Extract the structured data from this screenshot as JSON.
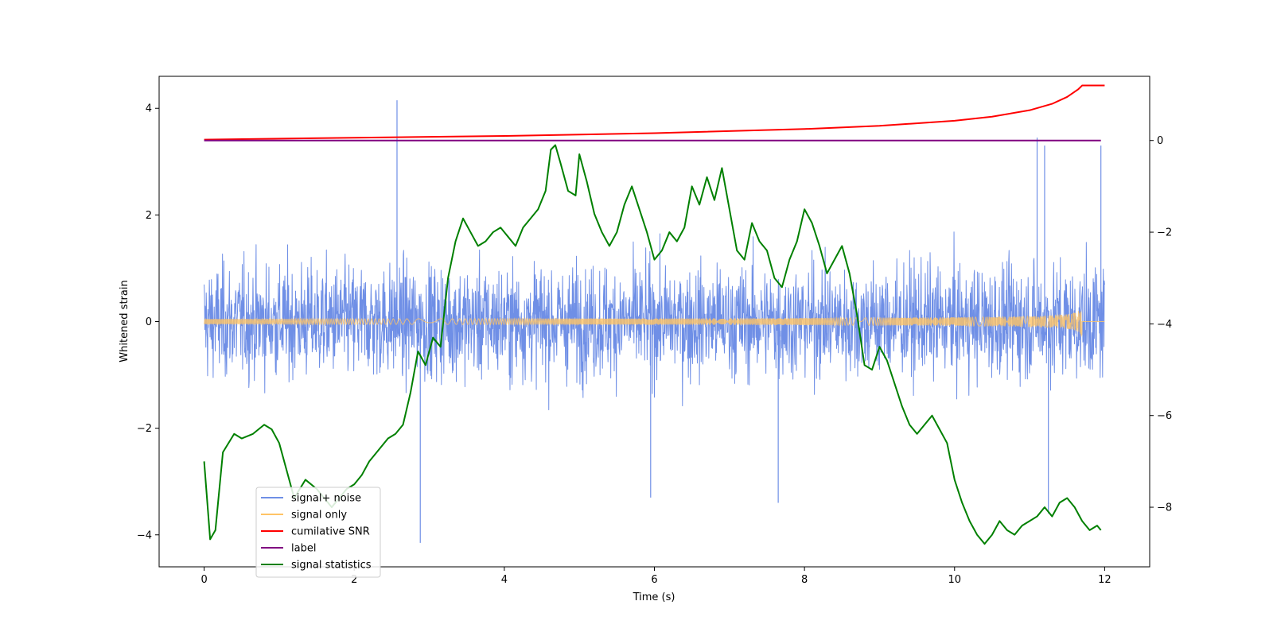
{
  "chart_data": {
    "type": "line",
    "title": "",
    "xlabel": "Time (s)",
    "ylabel": "Whitened strain",
    "ylabel_right": "",
    "xlim": [
      -0.6,
      12.6
    ],
    "ylim_left": [
      -4.6,
      4.6
    ],
    "ylim_right": [
      -9.3,
      1.4
    ],
    "x_ticks": [
      "0",
      "2",
      "4",
      "6",
      "8",
      "10",
      "12"
    ],
    "y_ticks_left": [
      "4",
      "2",
      "0",
      "−2",
      "−4"
    ],
    "y_ticks_right": [
      "0",
      "−2",
      "−4",
      "−6",
      "−8"
    ],
    "grid": false,
    "legend_position": "lower-left",
    "legend": [
      {
        "label": "signal+ noise",
        "color": "#6f8fe6"
      },
      {
        "label": "signal only",
        "color": "#ffc466"
      },
      {
        "label": "cumilative SNR",
        "color": "#ff0000"
      },
      {
        "label": "label",
        "color": "#800080"
      },
      {
        "label": "signal statistics",
        "color": "#008000"
      }
    ],
    "series": [
      {
        "name": "signal+ noise",
        "axis": "left",
        "color": "#6f8fe6",
        "render": "dense noise band",
        "x_range": [
          0,
          12
        ],
        "typical_envelope": [
          -1.7,
          1.7
        ],
        "peak_values": [
          {
            "x": 2.57,
            "y": 4.15
          },
          {
            "x": 2.88,
            "y": -4.15
          },
          {
            "x": 5.95,
            "y": -3.3
          },
          {
            "x": 7.65,
            "y": -3.4
          },
          {
            "x": 11.1,
            "y": 3.45
          },
          {
            "x": 11.2,
            "y": 3.3
          },
          {
            "x": 11.25,
            "y": -3.6
          },
          {
            "x": 11.95,
            "y": 3.3
          }
        ]
      },
      {
        "name": "signal only",
        "axis": "left",
        "color": "#ffc466",
        "render": "chirp",
        "x_range": [
          0,
          12
        ],
        "merger_time": 11.7,
        "peak_amplitude": 0.45
      },
      {
        "name": "cumilative SNR",
        "axis": "right",
        "color": "#ff0000",
        "x": [
          0,
          2,
          4,
          6,
          8,
          9,
          10,
          10.5,
          11,
          11.3,
          11.5,
          11.65,
          11.7,
          12.0
        ],
        "y": [
          0.02,
          0.06,
          0.1,
          0.16,
          0.25,
          0.32,
          0.43,
          0.52,
          0.66,
          0.8,
          0.95,
          1.12,
          1.2,
          1.2
        ]
      },
      {
        "name": "label",
        "axis": "right",
        "color": "#800080",
        "x": [
          0,
          11.95
        ],
        "y": [
          0,
          0
        ]
      },
      {
        "name": "signal statistics",
        "axis": "right",
        "color": "#008000",
        "x": [
          0,
          0.08,
          0.15,
          0.25,
          0.4,
          0.5,
          0.65,
          0.8,
          0.9,
          1.0,
          1.1,
          1.2,
          1.35,
          1.5,
          1.6,
          1.7,
          1.8,
          1.9,
          2.0,
          2.1,
          2.2,
          2.3,
          2.45,
          2.55,
          2.65,
          2.75,
          2.85,
          2.95,
          3.05,
          3.15,
          3.25,
          3.35,
          3.45,
          3.55,
          3.65,
          3.75,
          3.85,
          3.95,
          4.05,
          4.15,
          4.25,
          4.35,
          4.45,
          4.55,
          4.62,
          4.68,
          4.75,
          4.85,
          4.95,
          5.0,
          5.1,
          5.2,
          5.3,
          5.4,
          5.5,
          5.6,
          5.7,
          5.8,
          5.9,
          6.0,
          6.1,
          6.2,
          6.3,
          6.4,
          6.5,
          6.6,
          6.7,
          6.8,
          6.9,
          7.0,
          7.1,
          7.2,
          7.3,
          7.4,
          7.5,
          7.6,
          7.7,
          7.8,
          7.9,
          8.0,
          8.1,
          8.2,
          8.3,
          8.4,
          8.5,
          8.6,
          8.7,
          8.8,
          8.9,
          9.0,
          9.1,
          9.2,
          9.3,
          9.4,
          9.5,
          9.6,
          9.7,
          9.8,
          9.9,
          10.0,
          10.1,
          10.2,
          10.3,
          10.4,
          10.5,
          10.6,
          10.7,
          10.8,
          10.9,
          11.0,
          11.1,
          11.2,
          11.3,
          11.4,
          11.5,
          11.6,
          11.7,
          11.8,
          11.9,
          11.95
        ],
        "y": [
          -7.0,
          -8.7,
          -8.5,
          -6.8,
          -6.4,
          -6.5,
          -6.4,
          -6.2,
          -6.3,
          -6.6,
          -7.2,
          -7.8,
          -7.4,
          -7.6,
          -7.8,
          -8.0,
          -7.8,
          -7.6,
          -7.5,
          -7.3,
          -7.0,
          -6.8,
          -6.5,
          -6.4,
          -6.2,
          -5.5,
          -4.6,
          -4.9,
          -4.3,
          -4.5,
          -3.0,
          -2.2,
          -1.7,
          -2.0,
          -2.3,
          -2.2,
          -2.0,
          -1.9,
          -2.1,
          -2.3,
          -1.9,
          -1.7,
          -1.5,
          -1.1,
          -0.2,
          -0.1,
          -0.5,
          -1.1,
          -1.2,
          -0.3,
          -0.9,
          -1.6,
          -2.0,
          -2.3,
          -2.0,
          -1.4,
          -1.0,
          -1.5,
          -2.0,
          -2.6,
          -2.4,
          -2.0,
          -2.2,
          -1.9,
          -1.0,
          -1.4,
          -0.8,
          -1.3,
          -0.6,
          -1.5,
          -2.4,
          -2.6,
          -1.8,
          -2.2,
          -2.4,
          -3.0,
          -3.2,
          -2.6,
          -2.2,
          -1.5,
          -1.8,
          -2.3,
          -2.9,
          -2.6,
          -2.3,
          -2.9,
          -3.8,
          -4.9,
          -5.0,
          -4.5,
          -4.8,
          -5.3,
          -5.8,
          -6.2,
          -6.4,
          -6.2,
          -6.0,
          -6.3,
          -6.6,
          -7.4,
          -7.9,
          -8.3,
          -8.6,
          -8.8,
          -8.6,
          -8.3,
          -8.5,
          -8.6,
          -8.4,
          -8.3,
          -8.2,
          -8.0,
          -8.2,
          -7.9,
          -7.8,
          -8.0,
          -8.3,
          -8.5,
          -8.4,
          -8.5
        ]
      }
    ]
  }
}
